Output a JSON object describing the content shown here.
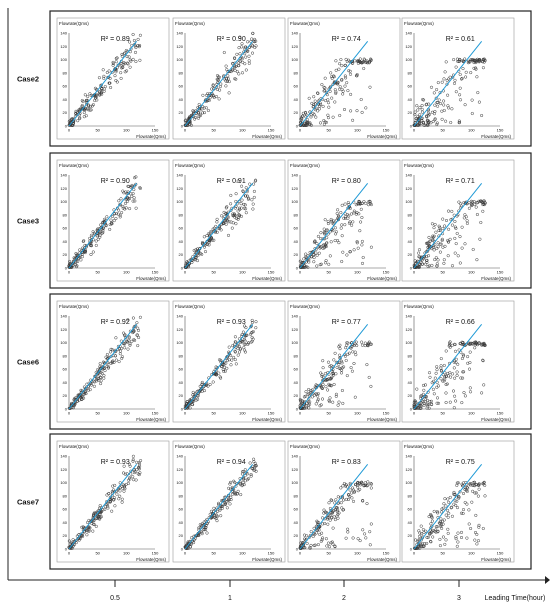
{
  "chart_data": {
    "type": "scatter",
    "x_axis_label": "Leading Time(hour)",
    "columns": [
      {
        "label": "0.5",
        "leading_time_hours": 0.5
      },
      {
        "label": "1",
        "leading_time_hours": 1
      },
      {
        "label": "2",
        "leading_time_hours": 2
      },
      {
        "label": "3",
        "leading_time_hours": 3
      }
    ],
    "rows": [
      {
        "label": "Case2",
        "r2_labels": [
          "R² = 0.89",
          "R² = 0.90",
          "R² = 0.74",
          "R² = 0.61"
        ],
        "r2": [
          0.89,
          0.9,
          0.74,
          0.61
        ]
      },
      {
        "label": "Case3",
        "r2_labels": [
          "R² = 0.90",
          "R² = 0.91",
          "R² = 0.80",
          "R² = 0.71"
        ],
        "r2": [
          0.9,
          0.91,
          0.8,
          0.71
        ]
      },
      {
        "label": "Case6",
        "r2_labels": [
          "R² = 0.92",
          "R² = 0.93",
          "R² = 0.77",
          "R² = 0.66"
        ],
        "r2": [
          0.92,
          0.93,
          0.77,
          0.66
        ]
      },
      {
        "label": "Case7",
        "r2_labels": [
          "R² = 0.93",
          "R² = 0.94",
          "R² = 0.83",
          "R² = 0.75"
        ],
        "r2": [
          0.93,
          0.94,
          0.83,
          0.75
        ]
      }
    ],
    "subplot": {
      "y_axis_title": "Flowrate(Qms)",
      "x_axis_title": "Flowrate(Qms)",
      "x_ticks": [
        0,
        50,
        100,
        150
      ],
      "y_ticks": [
        0,
        20,
        40,
        60,
        80,
        100,
        120,
        140
      ],
      "xlim": [
        0,
        150
      ],
      "ylim": [
        0,
        140
      ]
    },
    "marker": "open-circle",
    "trendline": "linear",
    "colors": {
      "points": "#3a3a3a",
      "trendline": "#1f9ad6",
      "frame": "#222222"
    }
  }
}
